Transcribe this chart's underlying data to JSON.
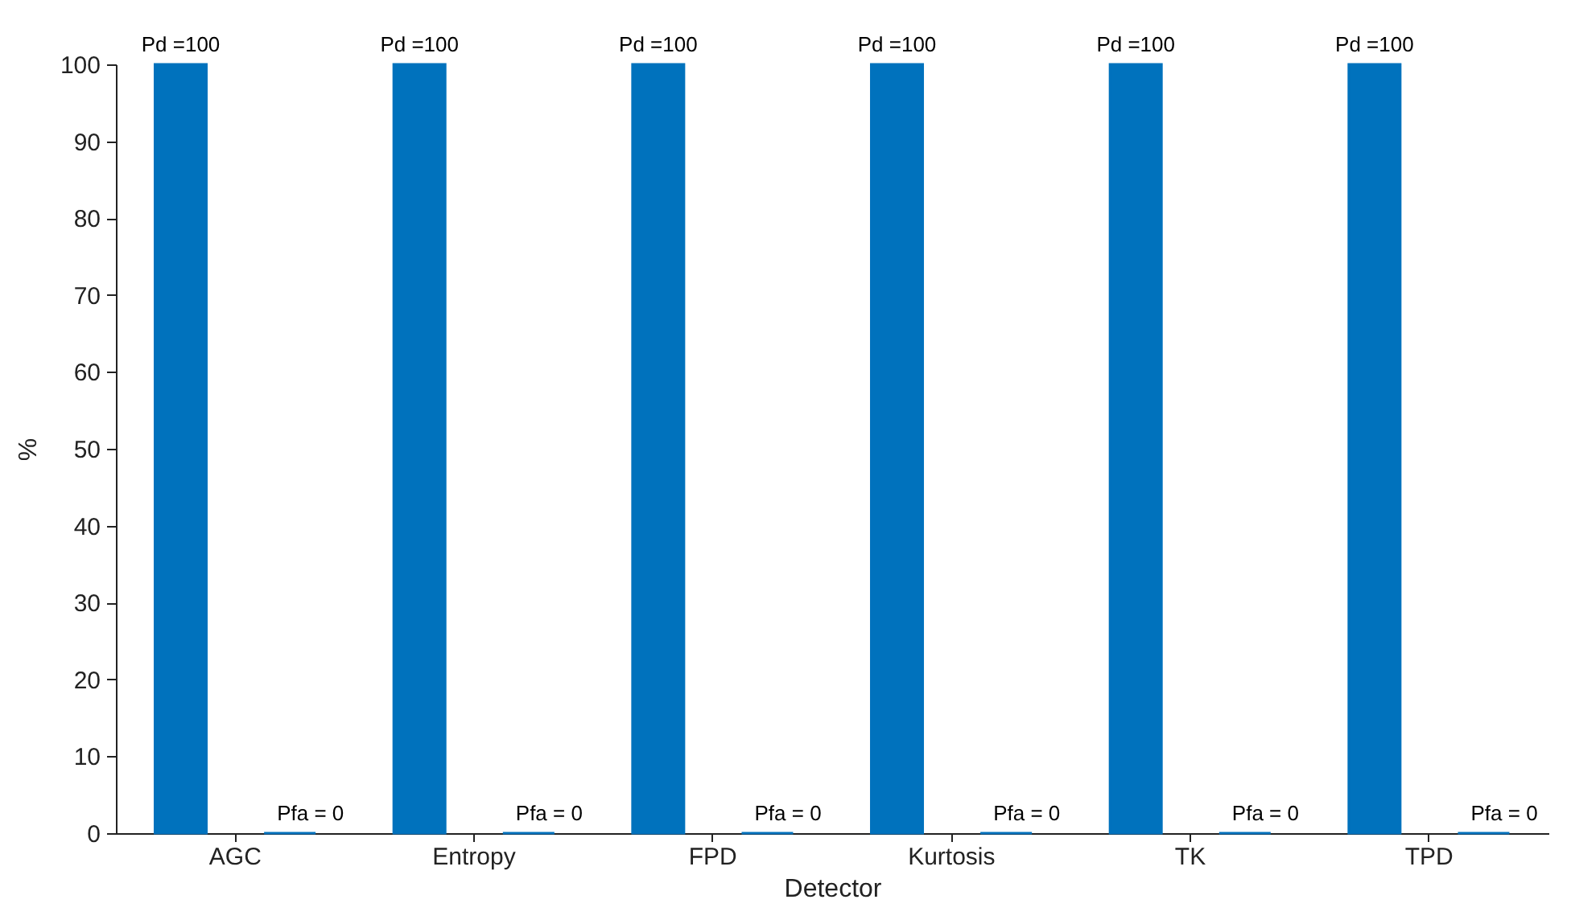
{
  "chart_data": {
    "type": "bar",
    "xlabel": "Detector",
    "ylabel": "%",
    "categories": [
      "AGC",
      "Entropy",
      "FPD",
      "Kurtosis",
      "TK",
      "TPD"
    ],
    "series": [
      {
        "color": "#0072bd",
        "values": [
          100,
          100,
          100,
          100,
          100,
          100
        ],
        "value_labels": [
          "Pd =100",
          "Pd =100",
          "Pd =100",
          "Pd =100",
          "Pd =100",
          "Pd =100"
        ]
      },
      {
        "color": "#0072bd",
        "values": [
          0,
          0,
          0,
          0,
          0,
          0
        ],
        "value_labels": [
          "Pfa = 0",
          "Pfa = 0",
          "Pfa = 0",
          "Pfa = 0",
          "Pfa = 0",
          "Pfa = 0"
        ]
      }
    ],
    "ylim": [
      0,
      100
    ],
    "yticks": [
      0,
      10,
      20,
      30,
      40,
      50,
      60,
      70,
      80,
      90,
      100
    ],
    "grid": false
  }
}
